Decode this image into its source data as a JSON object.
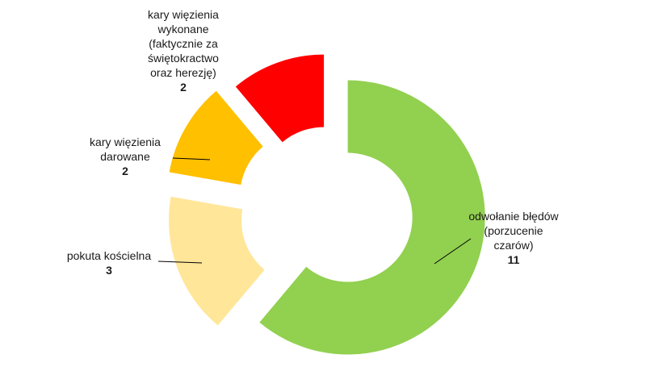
{
  "chart_data": {
    "type": "pie",
    "variant": "exploded-doughnut",
    "slices": [
      {
        "label_lines": [
          "odwołanie błędów",
          "(porzucenie",
          "czarów)"
        ],
        "value": 11,
        "value_label": "11",
        "color": "#92D050"
      },
      {
        "label_lines": [
          "pokuta kościelna"
        ],
        "value": 3,
        "value_label": "3",
        "color": "#FFE699"
      },
      {
        "label_lines": [
          "kary więzienia",
          "darowane"
        ],
        "value": 2,
        "value_label": "2",
        "color": "#FFC000"
      },
      {
        "label_lines": [
          "kary więzienia",
          "wykonane",
          "(faktycznie za",
          "świętokractwo",
          "oraz herezję)"
        ],
        "value": 2,
        "value_label": "2",
        "color": "#FF0000"
      }
    ],
    "legend": false,
    "leader_color": "#000000"
  }
}
